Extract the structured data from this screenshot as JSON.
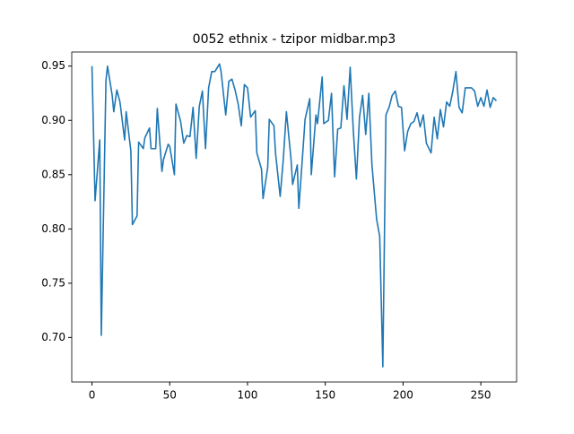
{
  "chart_data": {
    "type": "line",
    "title": "0052 ethnix - tzipor midbar.mp3",
    "x": [
      0,
      2,
      5,
      6,
      9,
      10,
      13,
      14,
      16,
      18,
      21,
      22,
      25,
      26,
      29,
      30,
      33,
      34,
      37,
      38,
      41,
      42,
      45,
      46,
      49,
      50,
      53,
      54,
      57,
      59,
      61,
      63,
      65,
      67,
      69,
      71,
      73,
      75,
      77,
      79,
      82,
      83,
      86,
      88,
      90,
      92,
      94,
      96,
      98,
      100,
      102,
      105,
      106,
      109,
      110,
      113,
      114,
      117,
      118,
      121,
      123,
      125,
      128,
      129,
      132,
      133,
      136,
      137,
      140,
      141,
      144,
      145,
      148,
      149,
      152,
      154,
      156,
      158,
      160,
      162,
      164,
      166,
      168,
      170,
      172,
      174,
      176,
      178,
      180,
      183,
      185,
      187,
      189,
      191,
      193,
      195,
      197,
      199,
      201,
      203,
      205,
      207,
      209,
      211,
      213,
      215,
      218,
      220,
      222,
      224,
      226,
      228,
      230,
      232,
      234,
      236,
      238,
      240,
      244,
      246,
      248,
      250,
      252,
      254,
      256,
      258,
      260
    ],
    "series": [
      {
        "name": "0052 ethnix - tzipor midbar.mp3",
        "color": "#1f77b4",
        "values": [
          0.95,
          0.826,
          0.882,
          0.702,
          0.937,
          0.95,
          0.923,
          0.908,
          0.928,
          0.917,
          0.882,
          0.908,
          0.872,
          0.804,
          0.812,
          0.88,
          0.874,
          0.884,
          0.893,
          0.874,
          0.874,
          0.911,
          0.853,
          0.864,
          0.878,
          0.876,
          0.85,
          0.915,
          0.899,
          0.879,
          0.886,
          0.885,
          0.912,
          0.865,
          0.913,
          0.927,
          0.874,
          0.93,
          0.945,
          0.945,
          0.952,
          0.945,
          0.905,
          0.936,
          0.938,
          0.928,
          0.915,
          0.895,
          0.933,
          0.93,
          0.903,
          0.909,
          0.87,
          0.855,
          0.828,
          0.857,
          0.901,
          0.895,
          0.87,
          0.83,
          0.864,
          0.908,
          0.864,
          0.841,
          0.859,
          0.819,
          0.88,
          0.901,
          0.92,
          0.85,
          0.905,
          0.897,
          0.94,
          0.897,
          0.9,
          0.925,
          0.848,
          0.892,
          0.893,
          0.932,
          0.901,
          0.949,
          0.891,
          0.846,
          0.903,
          0.923,
          0.887,
          0.925,
          0.859,
          0.809,
          0.793,
          0.673,
          0.905,
          0.912,
          0.923,
          0.927,
          0.913,
          0.912,
          0.872,
          0.89,
          0.897,
          0.899,
          0.907,
          0.894,
          0.905,
          0.879,
          0.87,
          0.903,
          0.883,
          0.91,
          0.894,
          0.917,
          0.913,
          0.927,
          0.945,
          0.912,
          0.907,
          0.93,
          0.93,
          0.927,
          0.913,
          0.921,
          0.913,
          0.928,
          0.912,
          0.921,
          0.918
        ]
      }
    ],
    "xlim": [
      -13,
      273
    ],
    "ylim": [
      0.659,
      0.963
    ],
    "xticks": [
      0,
      50,
      100,
      150,
      200,
      250
    ],
    "yticks": [
      {
        "value": 0.7,
        "label": "0.70"
      },
      0.75,
      {
        "value": 0.8,
        "label": "0.80"
      },
      0.85,
      {
        "value": 0.9,
        "label": "0.90"
      },
      0.95
    ]
  }
}
